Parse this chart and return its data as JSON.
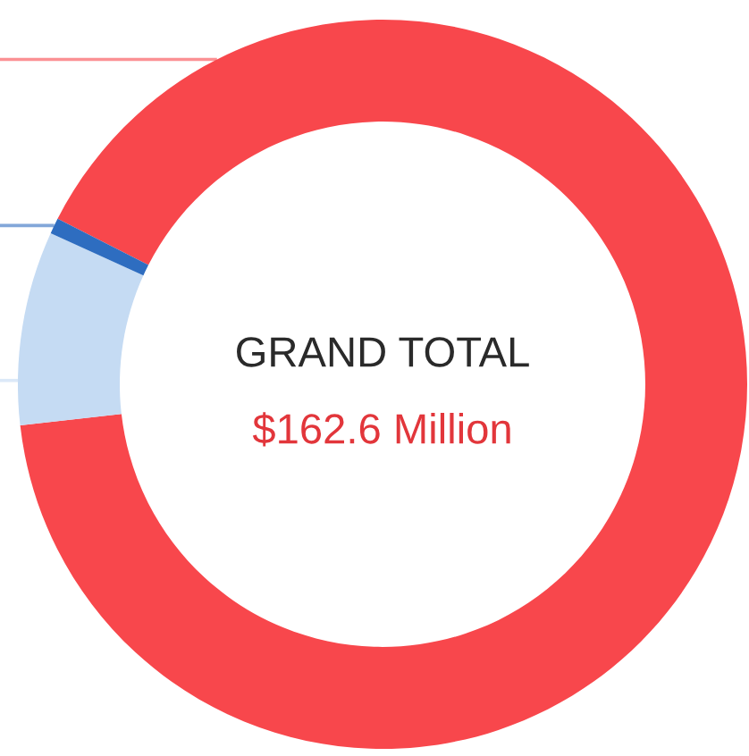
{
  "chart_data": {
    "type": "donut",
    "categories": [
      null,
      null,
      null
    ],
    "values": [
      90.7,
      8.6,
      0.7
    ],
    "colors": [
      "#f8474c",
      "#c5dbf3",
      "#2e6dc0"
    ],
    "annotations": [
      "GRAND TOTAL",
      "$162.6 Million"
    ]
  }
}
